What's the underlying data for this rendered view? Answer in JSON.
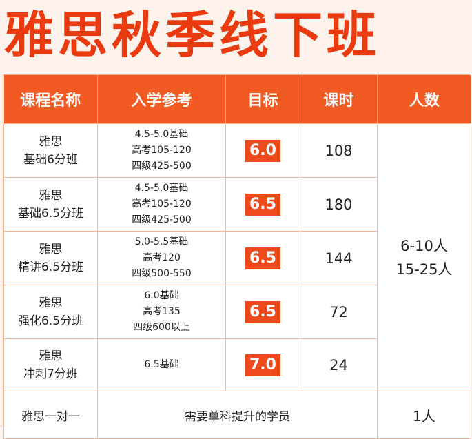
{
  "title": "雅思秋季线下班",
  "headers": [
    "课程名称",
    "入学参考",
    "目标",
    "课时",
    "人数"
  ],
  "courses": [
    {
      "name_line1": "雅思",
      "name_line2": "基础6分班",
      "ref": [
        "4.5-5.0基础",
        "高考105-120",
        "四级425-500"
      ],
      "target": "6.0",
      "hours": "108"
    },
    {
      "name_line1": "雅思",
      "name_line2": "基础6.5分班",
      "ref": [
        "4.5-5.0基础",
        "高考105-120",
        "四级425-500"
      ],
      "target": "6.5",
      "hours": "180"
    },
    {
      "name_line1": "雅思",
      "name_line2": "精讲6.5分班",
      "ref": [
        "5.0-5.5基础",
        "高考120",
        "四级500-550"
      ],
      "target": "6.5",
      "hours": "144"
    },
    {
      "name_line1": "雅思",
      "name_line2": "强化6.5分班",
      "ref": [
        "6.0基础",
        "高考135",
        "四级600以上"
      ],
      "target": "6.5",
      "hours": "72"
    },
    {
      "name_line1": "雅思",
      "name_line2": "冲刺7分班",
      "ref": [
        "6.5基础"
      ],
      "target": "7.0",
      "hours": "24"
    }
  ],
  "people": {
    "line1": "6-10人",
    "line2": "15-25人"
  },
  "one_on_one": {
    "name": "雅思一对一",
    "desc": "需要单科提升的学员",
    "people": "1人"
  }
}
